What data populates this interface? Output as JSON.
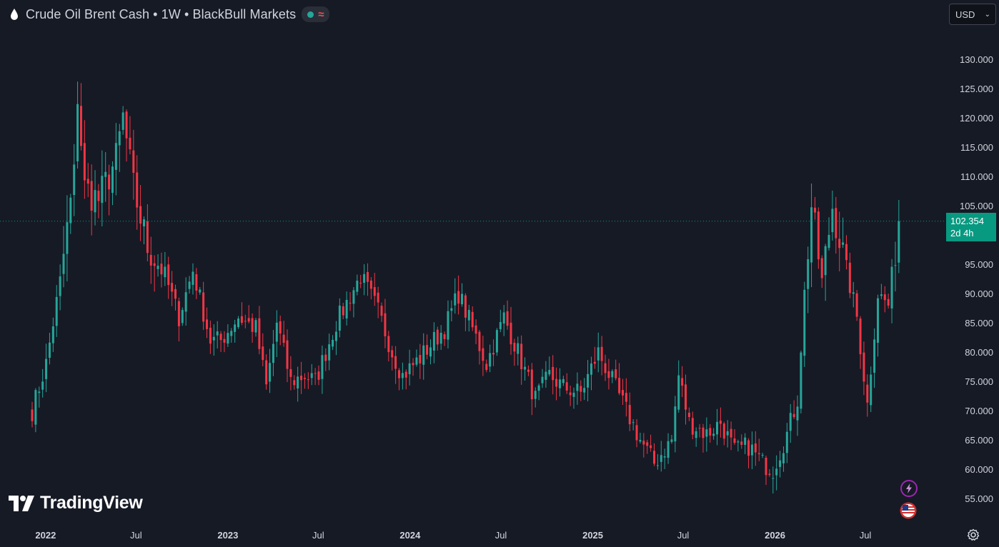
{
  "header": {
    "title": "Crude Oil Brent Cash • 1W • BlackBull Markets",
    "symbol_icon": "drop-icon",
    "status_icons": [
      "market-open-dot-icon",
      "delayed-wave-icon"
    ],
    "status_wave_glyph": "≈"
  },
  "currency_selector": {
    "value": "USD",
    "icon": "chevron-down-icon"
  },
  "price_badge": {
    "price": "102.354",
    "countdown": "2d 4h"
  },
  "branding": {
    "logo_text": "TradingView"
  },
  "side_icons": [
    "lightning-icon",
    "us-flag-icon"
  ],
  "settings_icon": "gear-icon",
  "colors": {
    "background": "#161a25",
    "up": "#26a69a",
    "down": "#f23645",
    "price_line": "#089981",
    "text": "#d1d4dc"
  },
  "chart_data": {
    "type": "candlestick",
    "symbol": "Crude Oil Brent Cash",
    "interval": "1W",
    "ylim": [
      52,
      134
    ],
    "y_ticks": [
      "130.000",
      "125.000",
      "120.000",
      "115.000",
      "110.000",
      "105.000",
      "95.000",
      "90.000",
      "85.000",
      "80.000",
      "75.000",
      "70.000",
      "65.000",
      "60.000",
      "55.000"
    ],
    "x_ticks": [
      "2022",
      "Jul",
      "2023",
      "Jul",
      "2024",
      "Jul",
      "2025",
      "Jul",
      "2026",
      "Jul"
    ],
    "x_tick_dates": [
      "2022-01-01",
      "2022-07-01",
      "2023-01-01",
      "2023-07-01",
      "2024-01-01",
      "2024-07-01",
      "2025-01-01",
      "2025-07-01",
      "2026-01-01",
      "2026-07-01"
    ],
    "start_date": "2021-12-05",
    "current_price": 102.354,
    "close_path": [
      [
        "2021-12-05",
        70
      ],
      [
        "2022-01-02",
        78
      ],
      [
        "2022-01-30",
        92
      ],
      [
        "2022-02-27",
        110
      ],
      [
        "2022-03-06",
        124
      ],
      [
        "2022-03-20",
        108
      ],
      [
        "2022-04-17",
        106
      ],
      [
        "2022-05-22",
        113
      ],
      [
        "2022-06-05",
        120
      ],
      [
        "2022-06-26",
        108
      ],
      [
        "2022-07-24",
        98
      ],
      [
        "2022-08-28",
        93
      ],
      [
        "2022-09-25",
        86
      ],
      [
        "2022-10-23",
        94
      ],
      [
        "2022-11-27",
        82
      ],
      [
        "2022-12-18",
        82
      ],
      [
        "2023-01-22",
        86
      ],
      [
        "2023-02-26",
        84
      ],
      [
        "2023-03-19",
        74
      ],
      [
        "2023-04-09",
        85
      ],
      [
        "2023-05-07",
        75
      ],
      [
        "2023-06-04",
        76
      ],
      [
        "2023-06-25",
        75
      ],
      [
        "2023-08-06",
        85
      ],
      [
        "2023-09-24",
        93
      ],
      [
        "2023-10-29",
        87
      ],
      [
        "2023-11-26",
        80
      ],
      [
        "2023-12-17",
        76
      ],
      [
        "2024-01-21",
        79
      ],
      [
        "2024-02-18",
        82
      ],
      [
        "2024-03-10",
        84
      ],
      [
        "2024-04-07",
        90
      ],
      [
        "2024-05-05",
        84
      ],
      [
        "2024-06-02",
        78
      ],
      [
        "2024-07-07",
        86
      ],
      [
        "2024-08-04",
        80
      ],
      [
        "2024-09-08",
        72
      ],
      [
        "2024-10-06",
        76
      ],
      [
        "2024-11-03",
        74
      ],
      [
        "2024-12-08",
        73
      ],
      [
        "2025-01-12",
        80
      ],
      [
        "2025-02-09",
        75
      ],
      [
        "2025-03-09",
        70
      ],
      [
        "2025-04-06",
        65
      ],
      [
        "2025-05-04",
        61
      ],
      [
        "2025-06-08",
        65
      ],
      [
        "2025-06-22",
        76
      ],
      [
        "2025-07-13",
        68
      ],
      [
        "2025-08-17",
        66
      ],
      [
        "2025-09-14",
        68
      ],
      [
        "2025-10-12",
        63
      ],
      [
        "2025-11-09",
        64
      ],
      [
        "2025-12-07",
        61
      ],
      [
        "2025-12-28",
        60
      ],
      [
        "2026-01-25",
        66
      ],
      [
        "2026-02-15",
        72
      ],
      [
        "2026-03-01",
        90
      ],
      [
        "2026-03-15",
        105
      ],
      [
        "2026-04-05",
        92
      ],
      [
        "2026-04-26",
        105
      ],
      [
        "2026-05-24",
        94
      ],
      [
        "2026-06-14",
        86
      ],
      [
        "2026-07-05",
        71
      ],
      [
        "2026-07-26",
        90
      ],
      [
        "2026-08-16",
        88
      ],
      [
        "2026-09-06",
        102.354
      ]
    ]
  }
}
